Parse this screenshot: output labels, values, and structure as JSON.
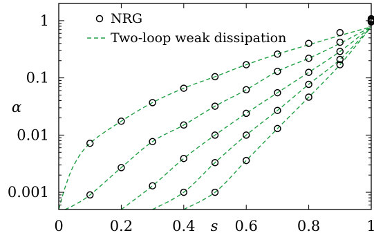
{
  "chart_data": {
    "type": "scatter",
    "title": "",
    "xlabel": "s",
    "ylabel": "α",
    "xlim": [
      0,
      1
    ],
    "ylim": [
      0.0005,
      2
    ],
    "yscale": "log",
    "x_ticks": [
      "0",
      "0.2",
      "0.4",
      "0.6",
      "0.8",
      "1"
    ],
    "x_tick_values": [
      0,
      0.2,
      0.4,
      0.6,
      0.8,
      1
    ],
    "y_ticks": [
      "0.001",
      "0.01",
      "0.1",
      "1"
    ],
    "y_tick_values": [
      0.001,
      0.01,
      0.1,
      1
    ],
    "legend_position": "top-left",
    "series": [
      {
        "name": "NRG",
        "kind": "markers",
        "marker": "open-circle",
        "groups": [
          {
            "x": [
              0.1,
              0.2,
              0.3,
              0.4,
              0.5,
              0.6,
              0.7,
              0.8,
              0.9,
              1.0
            ],
            "y": [
              0.0072,
              0.0175,
              0.037,
              0.066,
              0.105,
              0.17,
              0.26,
              0.4,
              0.62,
              1.08
            ]
          },
          {
            "x": [
              0.1,
              0.2,
              0.3,
              0.4,
              0.5,
              0.6,
              0.7,
              0.8,
              0.9,
              1.0
            ],
            "y": [
              0.0009,
              0.0027,
              0.0077,
              0.015,
              0.032,
              0.062,
              0.13,
              0.22,
              0.42,
              1.05
            ]
          },
          {
            "x": [
              0.3,
              0.4,
              0.5,
              0.6,
              0.7,
              0.8,
              0.9,
              1.0
            ],
            "y": [
              0.0013,
              0.0039,
              0.01,
              0.024,
              0.055,
              0.125,
              0.29,
              1.0
            ]
          },
          {
            "x": [
              0.4,
              0.5,
              0.6,
              0.7,
              0.8,
              0.9,
              1.0
            ],
            "y": [
              0.001,
              0.0033,
              0.01,
              0.027,
              0.077,
              0.21,
              0.98
            ]
          },
          {
            "x": [
              0.5,
              0.6,
              0.7,
              0.8,
              0.9,
              1.0
            ],
            "y": [
              0.001,
              0.0036,
              0.013,
              0.046,
              0.17,
              0.95
            ]
          }
        ]
      },
      {
        "name": "Two-loop weak dissipation",
        "kind": "dashed-line",
        "color": "#22a045",
        "curves": [
          {
            "x": [
              0,
              0.02,
              0.05,
              0.1,
              0.2,
              0.3,
              0.4,
              0.5,
              0.6,
              0.7,
              0.8,
              0.9,
              1.0
            ],
            "y": [
              0.0005,
              0.0012,
              0.0031,
              0.0072,
              0.0175,
              0.037,
              0.066,
              0.105,
              0.17,
              0.26,
              0.38,
              0.55,
              0.78
            ]
          },
          {
            "x": [
              0.02,
              0.05,
              0.1,
              0.2,
              0.3,
              0.4,
              0.5,
              0.6,
              0.7,
              0.8,
              0.9,
              1.0
            ],
            "y": [
              0.0005,
              0.0006,
              0.0009,
              0.0027,
              0.0077,
              0.015,
              0.032,
              0.062,
              0.13,
              0.22,
              0.4,
              0.78
            ]
          },
          {
            "x": [
              0.2,
              0.3,
              0.4,
              0.5,
              0.6,
              0.7,
              0.8,
              0.9,
              1.0
            ],
            "y": [
              0.0005,
              0.0013,
              0.0039,
              0.01,
              0.024,
              0.055,
              0.125,
              0.29,
              0.78
            ]
          },
          {
            "x": [
              0.3,
              0.4,
              0.5,
              0.6,
              0.7,
              0.8,
              0.9,
              1.0
            ],
            "y": [
              0.0005,
              0.001,
              0.0033,
              0.01,
              0.027,
              0.077,
              0.21,
              0.78
            ]
          },
          {
            "x": [
              0.4,
              0.5,
              0.6,
              0.7,
              0.8,
              0.9,
              1.0
            ],
            "y": [
              0.0005,
              0.001,
              0.0036,
              0.013,
              0.046,
              0.17,
              0.78
            ]
          }
        ]
      }
    ]
  }
}
